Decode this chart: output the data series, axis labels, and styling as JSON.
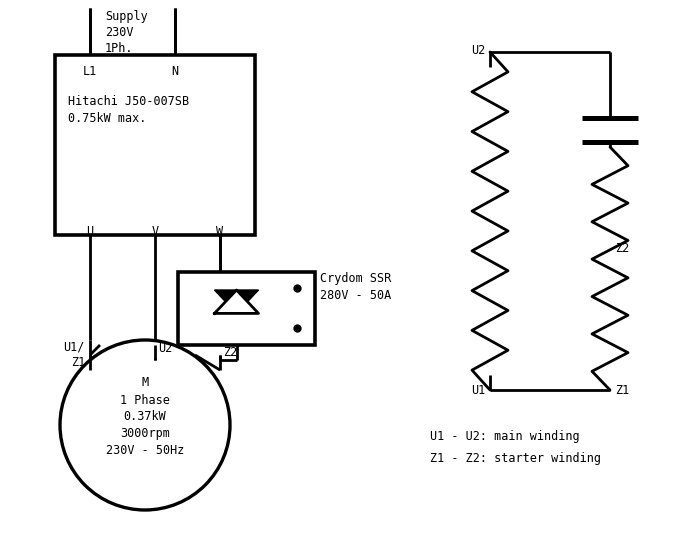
{
  "bg_color": "#ffffff",
  "line_color": "#000000",
  "lw": 2.0,
  "font_family": "monospace",
  "font_size": 8.5,
  "supply_text": "Supply\n230V\n1Ph.",
  "vfd_text": "Hitachi J50-007SB\n0.75kW max.",
  "ssr_text": "Crydom SSR\n280V - 50A",
  "motor_text": "M\n1 Phase\n0.37kW\n3000rpm\n230V - 50Hz",
  "legend_text1": "U1 - U2: main winding",
  "legend_text2": "Z1 - Z2: starter winding"
}
